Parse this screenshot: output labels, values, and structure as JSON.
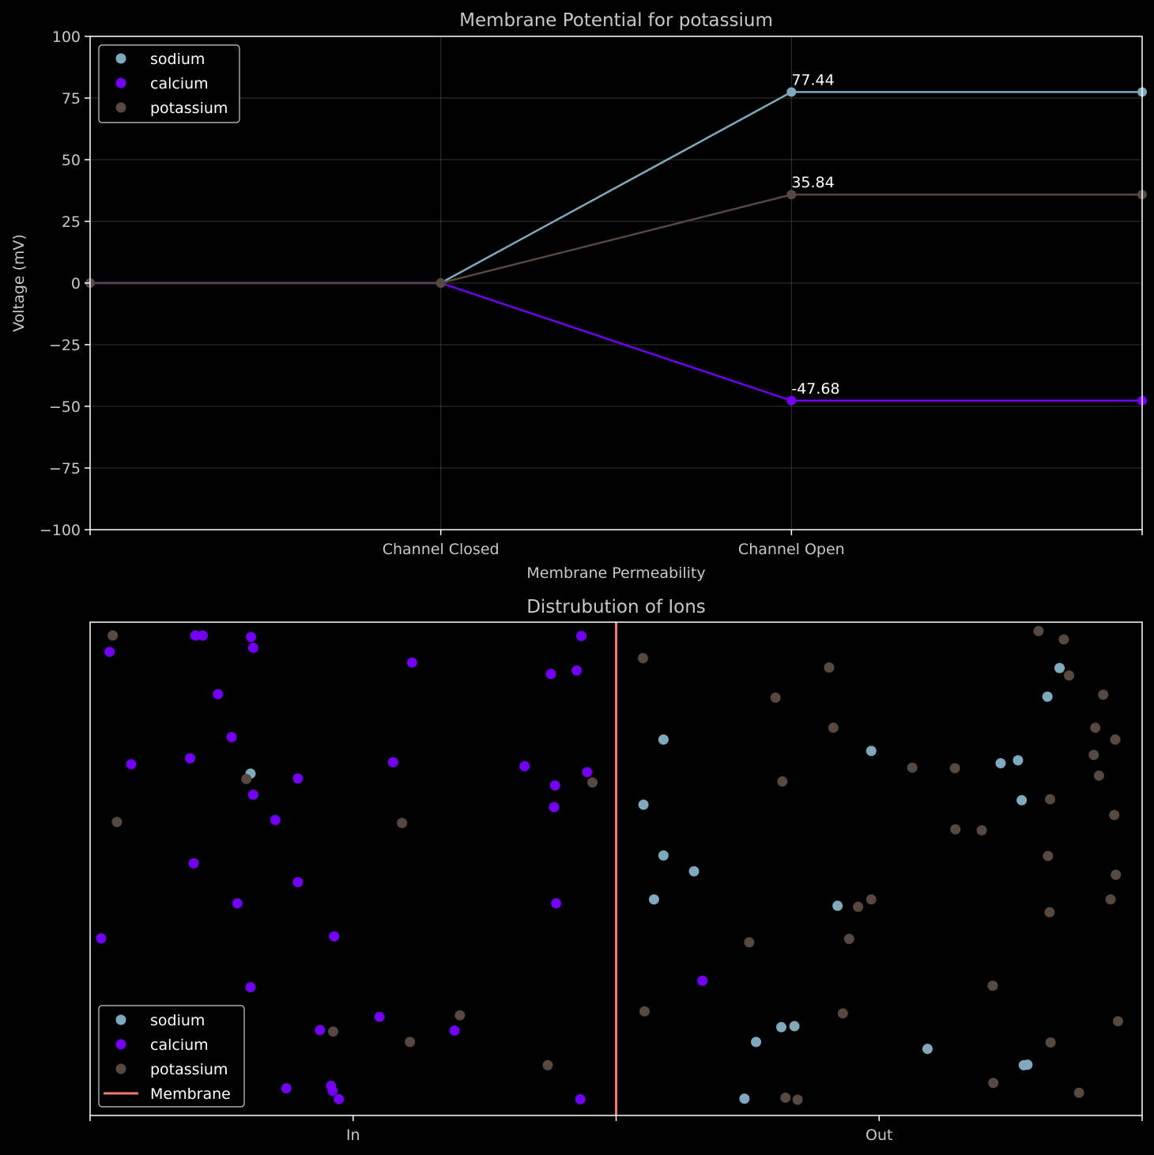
{
  "colors": {
    "background": "#000000",
    "axes": "#ffffff",
    "text": "#c8c8c8",
    "grid": "#333333",
    "sodium": "#7fa9bd",
    "calcium": "#7300f5",
    "potassium": "#574840",
    "membrane": "#f47a6a"
  },
  "chart_data": [
    {
      "type": "line",
      "title": "Membrane Potential for potassium",
      "xlabel": "Membrane Permeability",
      "ylabel": "Voltage (mV)",
      "ylim": [
        -100,
        100
      ],
      "xlim": [
        0,
        3
      ],
      "yticks": [
        -100,
        -75,
        -50,
        -25,
        0,
        25,
        50,
        75,
        100
      ],
      "ytick_labels": [
        "−100",
        "−75",
        "−50",
        "−25",
        "0",
        "25",
        "50",
        "75",
        "100"
      ],
      "xticks": [
        0,
        1,
        2,
        3
      ],
      "xtick_labels": [
        "",
        "Channel Closed",
        "Channel Open",
        ""
      ],
      "grid": true,
      "legend_position": "top-left",
      "x": [
        0,
        1,
        2,
        3
      ],
      "series": [
        {
          "name": "sodium",
          "color_key": "sodium",
          "values": [
            0,
            0,
            77.44,
            77.44
          ],
          "label": "77.44"
        },
        {
          "name": "calcium",
          "color_key": "calcium",
          "values": [
            0,
            0,
            -47.68,
            -47.68
          ],
          "label": "-47.68"
        },
        {
          "name": "potassium",
          "color_key": "potassium",
          "values": [
            0,
            0,
            35.84,
            35.84
          ],
          "label": "35.84"
        }
      ]
    },
    {
      "type": "scatter",
      "title": "Distrubution of Ions",
      "xlim": [
        0,
        2
      ],
      "ylim": [
        0,
        1
      ],
      "xticks": [
        0,
        0.5,
        1,
        1.5,
        2
      ],
      "xtick_labels": [
        "",
        "In",
        "",
        "Out",
        ""
      ],
      "legend_position": "bottom-left",
      "membrane": {
        "name": "Membrane",
        "x": 1.0
      },
      "series": [
        {
          "name": "sodium",
          "color_key": "sodium",
          "points": [
            [
              0.305,
              0.693
            ],
            [
              1.09,
              0.762
            ],
            [
              1.052,
              0.63
            ],
            [
              1.09,
              0.527
            ],
            [
              1.148,
              0.495
            ],
            [
              1.072,
              0.438
            ],
            [
              1.485,
              0.739
            ],
            [
              1.421,
              0.425
            ],
            [
              1.339,
              0.181
            ],
            [
              1.314,
              0.179
            ],
            [
              1.266,
              0.149
            ],
            [
              1.592,
              0.135
            ],
            [
              1.244,
              0.034
            ],
            [
              1.731,
              0.714
            ],
            [
              1.764,
              0.72
            ],
            [
              1.771,
              0.639
            ],
            [
              1.82,
              0.849
            ],
            [
              1.843,
              0.907
            ],
            [
              1.775,
              0.102
            ],
            [
              1.782,
              0.103
            ]
          ]
        },
        {
          "name": "calcium",
          "color_key": "calcium",
          "points": [
            [
              0.037,
              0.94
            ],
            [
              0.243,
              0.854
            ],
            [
              0.306,
              0.97
            ],
            [
              0.31,
              0.948
            ],
            [
              0.214,
              0.973
            ],
            [
              0.2,
              0.973
            ],
            [
              0.612,
              0.918
            ],
            [
              0.876,
              0.895
            ],
            [
              0.925,
              0.902
            ],
            [
              0.934,
              0.972
            ],
            [
              0.269,
              0.767
            ],
            [
              0.19,
              0.724
            ],
            [
              0.078,
              0.712
            ],
            [
              0.576,
              0.716
            ],
            [
              0.826,
              0.708
            ],
            [
              0.884,
              0.669
            ],
            [
              0.945,
              0.696
            ],
            [
              0.31,
              0.65
            ],
            [
              0.395,
              0.683
            ],
            [
              0.352,
              0.599
            ],
            [
              0.882,
              0.625
            ],
            [
              0.197,
              0.511
            ],
            [
              0.395,
              0.473
            ],
            [
              0.28,
              0.43
            ],
            [
              0.886,
              0.43
            ],
            [
              0.021,
              0.359
            ],
            [
              0.464,
              0.363
            ],
            [
              0.305,
              0.26
            ],
            [
              0.55,
              0.2
            ],
            [
              0.437,
              0.173
            ],
            [
              0.693,
              0.172
            ],
            [
              0.373,
              0.055
            ],
            [
              0.458,
              0.06
            ],
            [
              0.461,
              0.05
            ],
            [
              0.473,
              0.033
            ],
            [
              0.932,
              0.033
            ],
            [
              1.164,
              0.273
            ]
          ]
        },
        {
          "name": "potassium",
          "color_key": "potassium",
          "points": [
            [
              0.043,
              0.973
            ],
            [
              0.297,
              0.682
            ],
            [
              0.955,
              0.675
            ],
            [
              0.051,
              0.595
            ],
            [
              0.593,
              0.593
            ],
            [
              0.462,
              0.17
            ],
            [
              0.703,
              0.203
            ],
            [
              0.608,
              0.149
            ],
            [
              0.87,
              0.102
            ],
            [
              1.051,
              0.927
            ],
            [
              1.405,
              0.908
            ],
            [
              1.303,
              0.847
            ],
            [
              1.413,
              0.786
            ],
            [
              1.316,
              0.677
            ],
            [
              1.563,
              0.705
            ],
            [
              1.644,
              0.704
            ],
            [
              1.926,
              0.853
            ],
            [
              1.803,
              0.982
            ],
            [
              1.851,
              0.965
            ],
            [
              1.861,
              0.892
            ],
            [
              1.911,
              0.786
            ],
            [
              1.908,
              0.731
            ],
            [
              1.918,
              0.689
            ],
            [
              1.825,
              0.641
            ],
            [
              1.949,
              0.762
            ],
            [
              1.645,
              0.58
            ],
            [
              1.695,
              0.578
            ],
            [
              1.947,
              0.609
            ],
            [
              1.821,
              0.526
            ],
            [
              1.95,
              0.488
            ],
            [
              1.94,
              0.438
            ],
            [
              1.824,
              0.412
            ],
            [
              1.485,
              0.438
            ],
            [
              1.46,
              0.423
            ],
            [
              1.443,
              0.358
            ],
            [
              1.253,
              0.351
            ],
            [
              1.054,
              0.211
            ],
            [
              1.431,
              0.207
            ],
            [
              1.716,
              0.263
            ],
            [
              1.954,
              0.191
            ],
            [
              1.826,
              0.148
            ],
            [
              1.717,
              0.066
            ],
            [
              1.88,
              0.046
            ],
            [
              1.322,
              0.036
            ],
            [
              1.345,
              0.032
            ]
          ]
        }
      ]
    }
  ]
}
